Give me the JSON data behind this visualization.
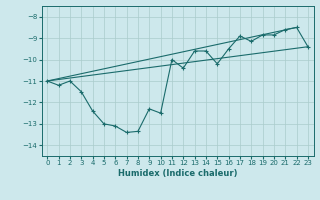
{
  "xlabel": "Humidex (Indice chaleur)",
  "ylabel": "",
  "bg_color": "#cde8ec",
  "line_color": "#1a6b6b",
  "grid_color": "#aacccc",
  "xlim": [
    -0.5,
    23.5
  ],
  "ylim": [
    -14.5,
    -7.5
  ],
  "yticks": [
    -14,
    -13,
    -12,
    -11,
    -10,
    -9,
    -8
  ],
  "xticks": [
    0,
    1,
    2,
    3,
    4,
    5,
    6,
    7,
    8,
    9,
    10,
    11,
    12,
    13,
    14,
    15,
    16,
    17,
    18,
    19,
    20,
    21,
    22,
    23
  ],
  "main_x": [
    0,
    1,
    2,
    3,
    4,
    5,
    6,
    7,
    8,
    9,
    10,
    11,
    12,
    13,
    14,
    15,
    16,
    17,
    18,
    19,
    20,
    21,
    22,
    23
  ],
  "main_y": [
    -11,
    -11.2,
    -11,
    -11.5,
    -12.4,
    -13,
    -13.1,
    -13.4,
    -13.35,
    -12.3,
    -12.5,
    -10,
    -10.4,
    -9.6,
    -9.6,
    -10.2,
    -9.5,
    -8.9,
    -9.15,
    -8.85,
    -8.85,
    -8.6,
    -8.5,
    -9.4
  ],
  "line2_x": [
    0,
    22
  ],
  "line2_y": [
    -11,
    -8.5
  ],
  "line3_x": [
    0,
    23
  ],
  "line3_y": [
    -11,
    -9.4
  ]
}
